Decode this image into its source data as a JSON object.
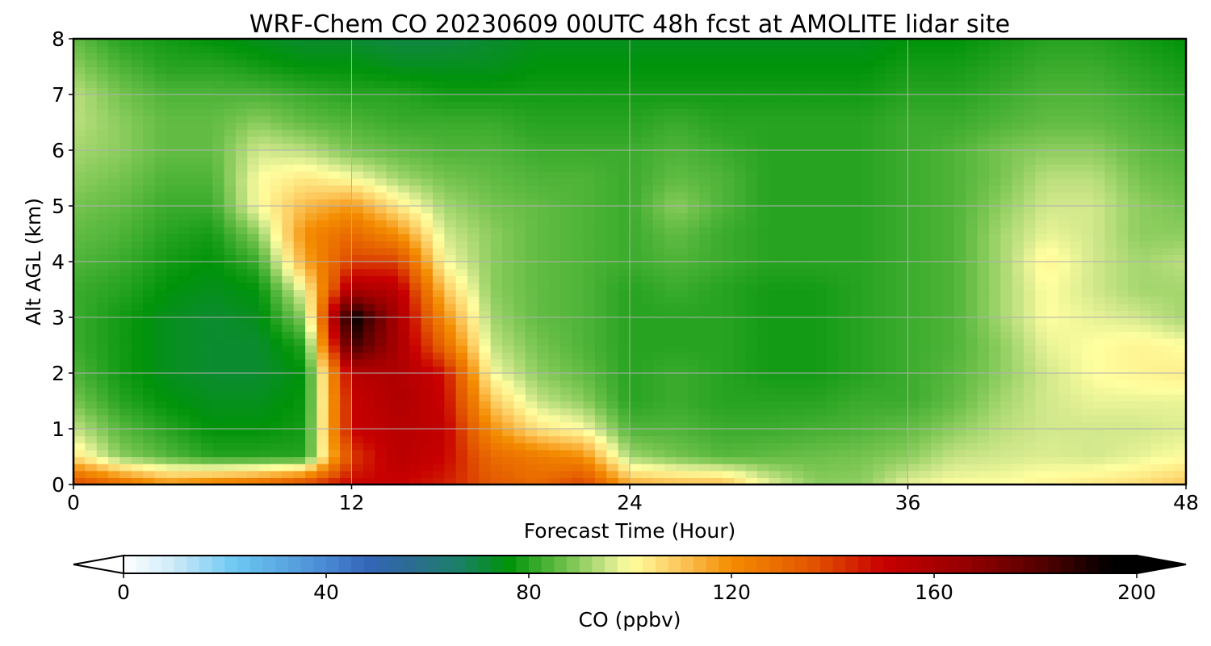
{
  "chart_data": {
    "type": "heatmap",
    "title": "WRF-Chem CO  20230609 00UTC 48h fcst at AMOLITE lidar site",
    "xlabel": "Forecast Time (Hour)",
    "ylabel": "Alt AGL (km)",
    "xlim": [
      0,
      48
    ],
    "ylim": [
      0,
      8
    ],
    "xticks": [
      0,
      12,
      24,
      36,
      48
    ],
    "yticks": [
      0,
      1,
      2,
      3,
      4,
      5,
      6,
      7,
      8
    ],
    "grid": true,
    "x": [
      0,
      2,
      4,
      6,
      8,
      10,
      12,
      14,
      16,
      18,
      20,
      22,
      24,
      26,
      28,
      30,
      32,
      34,
      36,
      38,
      40,
      42,
      44,
      46,
      48
    ],
    "y": [
      0,
      0.5,
      1,
      1.5,
      2,
      2.5,
      3,
      3.5,
      4,
      4.5,
      5,
      5.5,
      6,
      6.5,
      7,
      7.5,
      8
    ],
    "z_units": "ppbv",
    "z": [
      [
        140,
        130,
        120,
        125,
        130,
        140,
        150,
        150,
        145,
        135,
        130,
        140,
        115,
        112,
        112,
        98,
        90,
        90,
        98,
        100,
        100,
        102,
        104,
        106,
        110
      ],
      [
        105,
        90,
        85,
        80,
        80,
        80,
        140,
        155,
        150,
        130,
        125,
        120,
        92,
        88,
        85,
        86,
        87,
        88,
        90,
        95,
        96,
        97,
        96,
        98,
        100
      ],
      [
        95,
        85,
        80,
        76,
        76,
        78,
        150,
        155,
        152,
        120,
        105,
        100,
        84,
        84,
        82,
        82,
        83,
        84,
        86,
        90,
        94,
        96,
        96,
        96,
        97
      ],
      [
        88,
        80,
        76,
        74,
        74,
        77,
        150,
        158,
        150,
        110,
        95,
        90,
        80,
        82,
        80,
        80,
        80,
        82,
        82,
        86,
        92,
        96,
        98,
        98,
        98
      ],
      [
        84,
        78,
        74,
        72,
        72,
        76,
        155,
        158,
        148,
        100,
        90,
        86,
        80,
        82,
        80,
        78,
        78,
        80,
        82,
        85,
        90,
        96,
        100,
        102,
        103
      ],
      [
        82,
        78,
        74,
        72,
        72,
        80,
        185,
        160,
        130,
        95,
        88,
        84,
        80,
        80,
        80,
        78,
        78,
        80,
        82,
        84,
        90,
        98,
        100,
        102,
        100
      ],
      [
        82,
        78,
        74,
        72,
        74,
        90,
        198,
        160,
        120,
        92,
        86,
        84,
        80,
        80,
        80,
        78,
        78,
        80,
        82,
        84,
        92,
        100,
        98,
        96,
        92
      ],
      [
        82,
        80,
        76,
        74,
        76,
        100,
        160,
        155,
        110,
        90,
        86,
        84,
        80,
        82,
        80,
        78,
        78,
        80,
        82,
        84,
        92,
        100,
        96,
        92,
        92
      ],
      [
        84,
        82,
        78,
        76,
        82,
        115,
        140,
        140,
        100,
        90,
        86,
        84,
        82,
        84,
        82,
        80,
        80,
        80,
        82,
        84,
        92,
        102,
        96,
        92,
        94
      ],
      [
        86,
        84,
        80,
        78,
        90,
        120,
        130,
        120,
        96,
        90,
        86,
        84,
        82,
        86,
        82,
        80,
        80,
        80,
        82,
        84,
        92,
        98,
        96,
        90,
        90
      ],
      [
        88,
        86,
        82,
        82,
        100,
        112,
        118,
        104,
        92,
        88,
        86,
        84,
        82,
        90,
        84,
        80,
        80,
        80,
        82,
        84,
        90,
        96,
        96,
        90,
        88
      ],
      [
        90,
        88,
        84,
        84,
        100,
        104,
        100,
        92,
        88,
        86,
        84,
        84,
        82,
        86,
        84,
        80,
        80,
        80,
        82,
        84,
        88,
        94,
        94,
        88,
        86
      ],
      [
        92,
        90,
        86,
        86,
        96,
        94,
        88,
        86,
        84,
        84,
        82,
        82,
        82,
        84,
        82,
        80,
        80,
        80,
        82,
        84,
        88,
        90,
        90,
        86,
        84
      ],
      [
        94,
        90,
        86,
        86,
        90,
        86,
        84,
        82,
        82,
        82,
        80,
        80,
        80,
        82,
        80,
        80,
        80,
        80,
        82,
        82,
        84,
        86,
        86,
        84,
        82
      ],
      [
        94,
        88,
        84,
        84,
        84,
        82,
        80,
        80,
        78,
        78,
        78,
        78,
        78,
        78,
        78,
        78,
        78,
        78,
        80,
        80,
        82,
        84,
        84,
        82,
        80
      ],
      [
        90,
        84,
        80,
        80,
        78,
        76,
        76,
        74,
        74,
        74,
        76,
        76,
        76,
        76,
        76,
        76,
        76,
        76,
        78,
        78,
        80,
        82,
        82,
        80,
        78
      ],
      [
        86,
        80,
        78,
        76,
        74,
        72,
        72,
        70,
        70,
        72,
        74,
        74,
        74,
        74,
        74,
        74,
        74,
        74,
        76,
        76,
        78,
        80,
        80,
        78,
        76
      ]
    ],
    "colorbar": {
      "label": "CO  (ppbv)",
      "min": 0,
      "max": 200,
      "ticks": [
        0,
        40,
        80,
        120,
        160,
        200
      ],
      "extend": "both",
      "stops": [
        {
          "v": 0,
          "c": "#ffffff"
        },
        {
          "v": 10,
          "c": "#cdeaf8"
        },
        {
          "v": 22,
          "c": "#6cc8f2"
        },
        {
          "v": 40,
          "c": "#4a8ad4"
        },
        {
          "v": 48,
          "c": "#3465b8"
        },
        {
          "v": 58,
          "c": "#2a6e8c"
        },
        {
          "v": 66,
          "c": "#1c8069"
        },
        {
          "v": 76,
          "c": "#00930a"
        },
        {
          "v": 88,
          "c": "#76c450"
        },
        {
          "v": 96,
          "c": "#d2e88c"
        },
        {
          "v": 100,
          "c": "#ffffa0"
        },
        {
          "v": 110,
          "c": "#fcc65a"
        },
        {
          "v": 120,
          "c": "#f48c00"
        },
        {
          "v": 136,
          "c": "#e25500"
        },
        {
          "v": 150,
          "c": "#c80000"
        },
        {
          "v": 166,
          "c": "#960000"
        },
        {
          "v": 180,
          "c": "#5a0000"
        },
        {
          "v": 195,
          "c": "#000000"
        },
        {
          "v": 200,
          "c": "#000000"
        }
      ]
    }
  }
}
